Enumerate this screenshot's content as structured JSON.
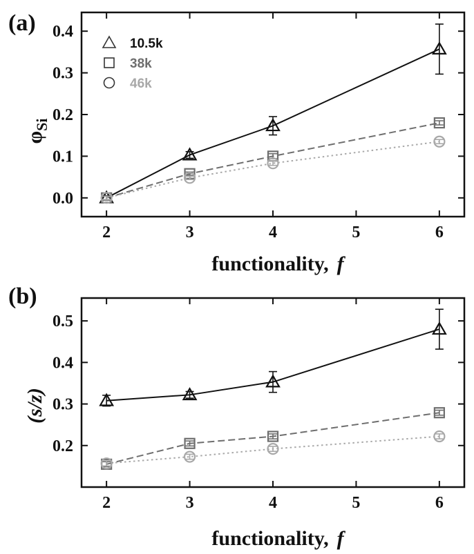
{
  "chart_data": [
    {
      "type": "line",
      "panel_label": "(a)",
      "xlabel": "functionality,",
      "xlabel_var": "f",
      "ylabel": "φ",
      "ylabel_sub": "Si",
      "xlim": [
        1.7,
        6.3
      ],
      "ylim": [
        -0.045,
        0.445
      ],
      "xticks": [
        2,
        3,
        4,
        5,
        6
      ],
      "yticks": [
        0.0,
        0.1,
        0.2,
        0.3,
        0.4
      ],
      "ytick_labels": [
        "0.0",
        "0.1",
        "0.2",
        "0.3",
        "0.4"
      ],
      "legend_position": "top-left",
      "series": [
        {
          "name": "10.5k",
          "marker": "triangle",
          "line": "solid",
          "color": "#111111",
          "x": [
            2,
            3,
            4,
            6
          ],
          "y": [
            0.0,
            0.103,
            0.173,
            0.357
          ],
          "err": [
            0.005,
            0.008,
            0.022,
            0.06
          ]
        },
        {
          "name": "38k",
          "marker": "square",
          "line": "dashed",
          "color": "#6e6e6e",
          "x": [
            2,
            3,
            4,
            6
          ],
          "y": [
            0.0,
            0.058,
            0.1,
            0.18
          ],
          "err": [
            0.004,
            0.004,
            0.006,
            0.005
          ]
        },
        {
          "name": "46k",
          "marker": "circle",
          "line": "dotted",
          "color": "#a8a8a8",
          "x": [
            2,
            3,
            4,
            6
          ],
          "y": [
            0.0,
            0.048,
            0.083,
            0.135
          ],
          "err": [
            0.004,
            0.004,
            0.005,
            0.005
          ]
        }
      ]
    },
    {
      "type": "line",
      "panel_label": "(b)",
      "xlabel": "functionality,",
      "xlabel_var": "f",
      "ylabel": "(s/z)",
      "ylabel_sub": "",
      "xlim": [
        1.7,
        6.3
      ],
      "ylim": [
        0.1,
        0.555
      ],
      "xticks": [
        2,
        3,
        4,
        5,
        6
      ],
      "yticks": [
        0.2,
        0.3,
        0.4,
        0.5
      ],
      "ytick_labels": [
        "0.2",
        "0.3",
        "0.4",
        "0.5"
      ],
      "series": [
        {
          "name": "10.5k",
          "marker": "triangle",
          "line": "solid",
          "color": "#111111",
          "x": [
            2,
            3,
            4,
            6
          ],
          "y": [
            0.308,
            0.322,
            0.353,
            0.48
          ],
          "err": [
            0.013,
            0.008,
            0.025,
            0.048
          ]
        },
        {
          "name": "38k",
          "marker": "square",
          "line": "dashed",
          "color": "#6e6e6e",
          "x": [
            2,
            3,
            4,
            6
          ],
          "y": [
            0.155,
            0.205,
            0.222,
            0.279
          ],
          "err": [
            0.006,
            0.006,
            0.006,
            0.006
          ]
        },
        {
          "name": "46k",
          "marker": "circle",
          "line": "dotted",
          "color": "#a8a8a8",
          "x": [
            2,
            3,
            4,
            6
          ],
          "y": [
            0.157,
            0.173,
            0.192,
            0.222
          ],
          "err": [
            0.006,
            0.006,
            0.006,
            0.006
          ]
        }
      ]
    }
  ]
}
